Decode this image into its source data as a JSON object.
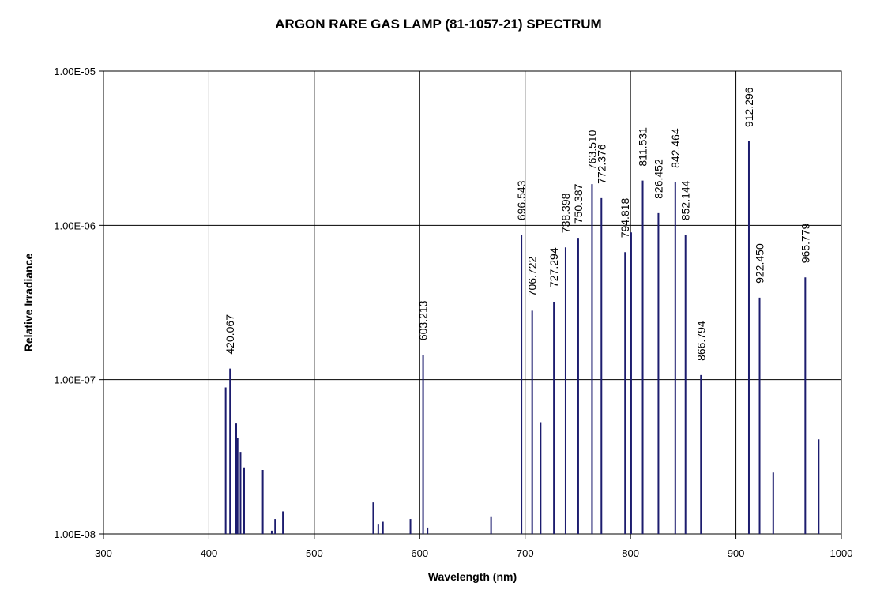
{
  "chart_data": {
    "type": "bar",
    "subtype": "spectrum-lines",
    "title": "ARGON RARE GAS LAMP (81-1057-21) SPECTRUM",
    "xlabel": "Wavelength (nm)",
    "ylabel": "Relative Irradiance",
    "xlim": [
      300,
      1000
    ],
    "ylim": [
      1e-08,
      1e-05
    ],
    "yscale": "log",
    "grid": true,
    "x_ticks": [
      "300",
      "400",
      "500",
      "600",
      "700",
      "800",
      "900",
      "1000"
    ],
    "y_ticks": [
      "1.00E-08",
      "1.00E-07",
      "1.00E-06",
      "1.00E-05"
    ],
    "line_color": "#1c1c6e",
    "series": [
      {
        "values": [
          {
            "x": 415.9,
            "y": 8.9e-08
          },
          {
            "x": 420.067,
            "y": 1.18e-07
          },
          {
            "x": 425.9,
            "y": 5.2e-08
          },
          {
            "x": 427.2,
            "y": 4.2e-08
          },
          {
            "x": 430.0,
            "y": 3.4e-08
          },
          {
            "x": 433.4,
            "y": 2.7e-08
          },
          {
            "x": 451.1,
            "y": 2.6e-08
          },
          {
            "x": 459.6,
            "y": 1.05e-08
          },
          {
            "x": 462.8,
            "y": 1.25e-08
          },
          {
            "x": 470.2,
            "y": 1.4e-08
          },
          {
            "x": 555.9,
            "y": 1.6e-08
          },
          {
            "x": 560.7,
            "y": 1.15e-08
          },
          {
            "x": 565.1,
            "y": 1.2e-08
          },
          {
            "x": 591.2,
            "y": 1.25e-08
          },
          {
            "x": 603.213,
            "y": 1.45e-07
          },
          {
            "x": 607.4,
            "y": 1.1e-08
          },
          {
            "x": 667.7,
            "y": 1.3e-08
          },
          {
            "x": 696.543,
            "y": 8.7e-07
          },
          {
            "x": 706.722,
            "y": 2.8e-07
          },
          {
            "x": 714.7,
            "y": 5.3e-08
          },
          {
            "x": 727.294,
            "y": 3.2e-07
          },
          {
            "x": 738.398,
            "y": 7.2e-07
          },
          {
            "x": 750.387,
            "y": 8.3e-07
          },
          {
            "x": 763.51,
            "y": 1.85e-06
          },
          {
            "x": 772.376,
            "y": 1.5e-06
          },
          {
            "x": 794.818,
            "y": 6.7e-07
          },
          {
            "x": 800.6,
            "y": 9e-07
          },
          {
            "x": 811.531,
            "y": 1.95e-06
          },
          {
            "x": 826.452,
            "y": 1.2e-06
          },
          {
            "x": 842.464,
            "y": 1.9e-06
          },
          {
            "x": 852.144,
            "y": 8.7e-07
          },
          {
            "x": 866.794,
            "y": 1.07e-07
          },
          {
            "x": 912.296,
            "y": 3.5e-06
          },
          {
            "x": 922.45,
            "y": 3.4e-07
          },
          {
            "x": 935.4,
            "y": 2.5e-08
          },
          {
            "x": 965.779,
            "y": 4.6e-07
          },
          {
            "x": 978.5,
            "y": 4.1e-08
          }
        ]
      }
    ],
    "peak_labels": [
      {
        "x": 420.067,
        "text": "420.067"
      },
      {
        "x": 603.213,
        "text": "603.213"
      },
      {
        "x": 696.543,
        "text": "696.543"
      },
      {
        "x": 706.722,
        "text": "706.722"
      },
      {
        "x": 727.294,
        "text": "727.294"
      },
      {
        "x": 738.398,
        "text": "738.398"
      },
      {
        "x": 750.387,
        "text": "750.387"
      },
      {
        "x": 763.51,
        "text": "763.510"
      },
      {
        "x": 772.376,
        "text": "772.376"
      },
      {
        "x": 794.818,
        "text": "794.818"
      },
      {
        "x": 811.531,
        "text": "811.531"
      },
      {
        "x": 826.452,
        "text": "826.452"
      },
      {
        "x": 842.464,
        "text": "842.464"
      },
      {
        "x": 852.144,
        "text": "852.144"
      },
      {
        "x": 866.794,
        "text": "866.794"
      },
      {
        "x": 912.296,
        "text": "912.296"
      },
      {
        "x": 922.45,
        "text": "922.450"
      },
      {
        "x": 965.779,
        "text": "965.779"
      }
    ]
  }
}
